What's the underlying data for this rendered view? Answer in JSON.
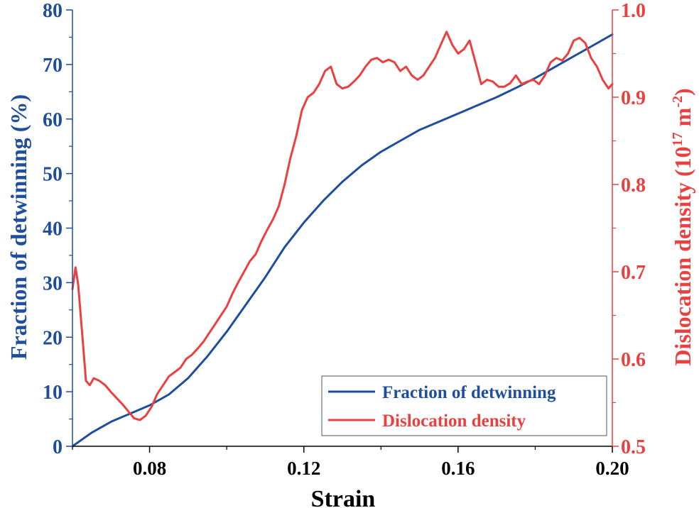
{
  "chart_data": {
    "type": "line",
    "title": "",
    "xlabel": "Strain",
    "xlim": [
      0.06,
      0.2
    ],
    "x_ticks": [
      0.08,
      0.12,
      0.16,
      0.2
    ],
    "x_tick_labels": [
      "0.08",
      "0.12",
      "0.16",
      "0.20"
    ],
    "y_left": {
      "label": "Fraction of detwinning (%)",
      "lim": [
        0,
        80
      ],
      "ticks": [
        0,
        10,
        20,
        30,
        40,
        50,
        60,
        70,
        80
      ],
      "tick_labels": [
        "0",
        "10",
        "20",
        "30",
        "40",
        "50",
        "60",
        "70",
        "80"
      ],
      "color": "#1f4e9c"
    },
    "y_right": {
      "label_main": "Dislocation density (10",
      "label_exp1": "17",
      "label_mid": " m",
      "label_exp2": "-2",
      "label_end": ")",
      "lim": [
        0.5,
        1.0
      ],
      "ticks": [
        0.5,
        0.6,
        0.7,
        0.8,
        0.9,
        1.0
      ],
      "tick_labels": [
        "0.5",
        "0.6",
        "0.7",
        "0.8",
        "0.9",
        "1.0"
      ],
      "color": "#e8413f"
    },
    "legend": {
      "placement": "bottom-right",
      "entries": [
        "Fraction of detwinning",
        "Dislocation density"
      ]
    },
    "series": [
      {
        "name": "Fraction of detwinning",
        "axis": "left",
        "color": "#1f4e9c",
        "x": [
          0.06,
          0.065,
          0.07,
          0.075,
          0.08,
          0.085,
          0.09,
          0.095,
          0.1,
          0.105,
          0.11,
          0.115,
          0.12,
          0.125,
          0.13,
          0.135,
          0.14,
          0.145,
          0.15,
          0.155,
          0.16,
          0.165,
          0.17,
          0.175,
          0.18,
          0.185,
          0.19,
          0.195,
          0.2
        ],
        "y": [
          0.0,
          2.5,
          4.5,
          6.0,
          7.5,
          9.5,
          12.5,
          16.5,
          21.0,
          26.0,
          31.0,
          36.5,
          41.0,
          45.0,
          48.5,
          51.5,
          54.0,
          56.0,
          58.0,
          59.5,
          61.0,
          62.5,
          64.0,
          65.7,
          67.5,
          69.5,
          71.5,
          73.5,
          75.5
        ]
      },
      {
        "name": "Dislocation density",
        "axis": "right",
        "color": "#e8413f",
        "x": [
          0.06,
          0.0608,
          0.0615,
          0.0625,
          0.0635,
          0.0645,
          0.0655,
          0.067,
          0.0685,
          0.07,
          0.0715,
          0.073,
          0.0745,
          0.076,
          0.0775,
          0.079,
          0.0805,
          0.082,
          0.0835,
          0.085,
          0.0865,
          0.088,
          0.0895,
          0.091,
          0.0925,
          0.094,
          0.0955,
          0.097,
          0.0985,
          0.1,
          0.1015,
          0.103,
          0.1045,
          0.106,
          0.1075,
          0.109,
          0.1105,
          0.112,
          0.1135,
          0.115,
          0.1165,
          0.118,
          0.1195,
          0.121,
          0.1225,
          0.124,
          0.1255,
          0.127,
          0.1285,
          0.13,
          0.1315,
          0.133,
          0.1345,
          0.136,
          0.1375,
          0.139,
          0.1405,
          0.142,
          0.1435,
          0.145,
          0.1465,
          0.148,
          0.1495,
          0.151,
          0.1525,
          0.154,
          0.1555,
          0.157,
          0.1585,
          0.16,
          0.1615,
          0.163,
          0.1645,
          0.166,
          0.1675,
          0.169,
          0.1705,
          0.172,
          0.1735,
          0.175,
          0.1765,
          0.178,
          0.1795,
          0.181,
          0.1825,
          0.184,
          0.1855,
          0.187,
          0.1885,
          0.19,
          0.1915,
          0.193,
          0.1945,
          0.196,
          0.1975,
          0.199,
          0.2
        ],
        "y": [
          0.68,
          0.705,
          0.685,
          0.63,
          0.575,
          0.57,
          0.578,
          0.575,
          0.57,
          0.562,
          0.555,
          0.548,
          0.54,
          0.532,
          0.53,
          0.535,
          0.545,
          0.56,
          0.57,
          0.58,
          0.585,
          0.59,
          0.6,
          0.605,
          0.612,
          0.62,
          0.63,
          0.64,
          0.65,
          0.66,
          0.675,
          0.688,
          0.7,
          0.712,
          0.72,
          0.735,
          0.748,
          0.76,
          0.775,
          0.8,
          0.83,
          0.855,
          0.885,
          0.9,
          0.905,
          0.915,
          0.93,
          0.935,
          0.915,
          0.91,
          0.912,
          0.918,
          0.925,
          0.935,
          0.943,
          0.945,
          0.94,
          0.943,
          0.94,
          0.93,
          0.935,
          0.925,
          0.92,
          0.925,
          0.935,
          0.945,
          0.96,
          0.975,
          0.96,
          0.95,
          0.955,
          0.965,
          0.94,
          0.915,
          0.92,
          0.918,
          0.912,
          0.912,
          0.916,
          0.925,
          0.915,
          0.918,
          0.92,
          0.915,
          0.925,
          0.94,
          0.945,
          0.942,
          0.95,
          0.965,
          0.968,
          0.962,
          0.945,
          0.935,
          0.92,
          0.91,
          0.915
        ]
      }
    ]
  }
}
